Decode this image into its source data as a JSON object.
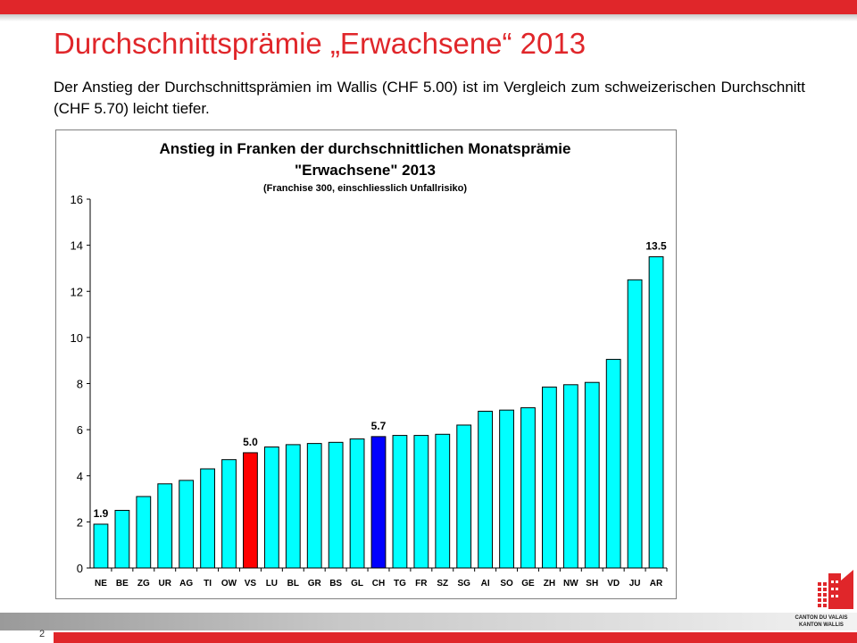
{
  "slide": {
    "title": "Durchschnittsprämie „Erwachsene“ 2013",
    "subtitle": "Der Anstieg der Durchschnittsprämien im Wallis (CHF 5.00) ist im Vergleich zum schweizerischen Durchschnitt (CHF 5.70) leicht tiefer.",
    "page_number": "2",
    "logo_line1": "CANTON DU VALAIS",
    "logo_line2": "KANTON WALLIS"
  },
  "colors": {
    "accent_red": "#e0262a",
    "bar_default": "#00ffff",
    "bar_vs": "#ff0000",
    "bar_ch": "#0000ff"
  },
  "chart_data": {
    "type": "bar",
    "title_line1": "Anstieg in Franken der durchschnittlichen Monatsprämie",
    "title_line2": "\"Erwachsene\" 2013",
    "title_line3": "(Franchise 300, einschliesslich Unfallrisiko)",
    "categories": [
      "NE",
      "BE",
      "ZG",
      "UR",
      "AG",
      "TI",
      "OW",
      "VS",
      "LU",
      "BL",
      "GR",
      "BS",
      "GL",
      "CH",
      "TG",
      "FR",
      "SZ",
      "SG",
      "AI",
      "SO",
      "GE",
      "ZH",
      "NW",
      "SH",
      "VD",
      "JU",
      "AR"
    ],
    "values": [
      1.9,
      2.5,
      3.1,
      3.65,
      3.8,
      4.3,
      4.7,
      5.0,
      5.25,
      5.35,
      5.4,
      5.45,
      5.6,
      5.7,
      5.75,
      5.75,
      5.8,
      6.2,
      6.8,
      6.85,
      6.95,
      7.85,
      7.95,
      8.05,
      9.05,
      12.5,
      13.5
    ],
    "highlight": {
      "VS": "bar_vs",
      "CH": "bar_ch"
    },
    "data_labels": [
      {
        "category": "NE",
        "text": "1.9"
      },
      {
        "category": "VS",
        "text": "5.0"
      },
      {
        "category": "CH",
        "text": "5.7"
      },
      {
        "category": "AR",
        "text": "13.5"
      }
    ],
    "ylim": [
      0,
      16
    ],
    "yticks": [
      "0",
      "2",
      "4",
      "6",
      "8",
      "10",
      "12",
      "14",
      "16"
    ],
    "grid": false,
    "legend": "none"
  }
}
